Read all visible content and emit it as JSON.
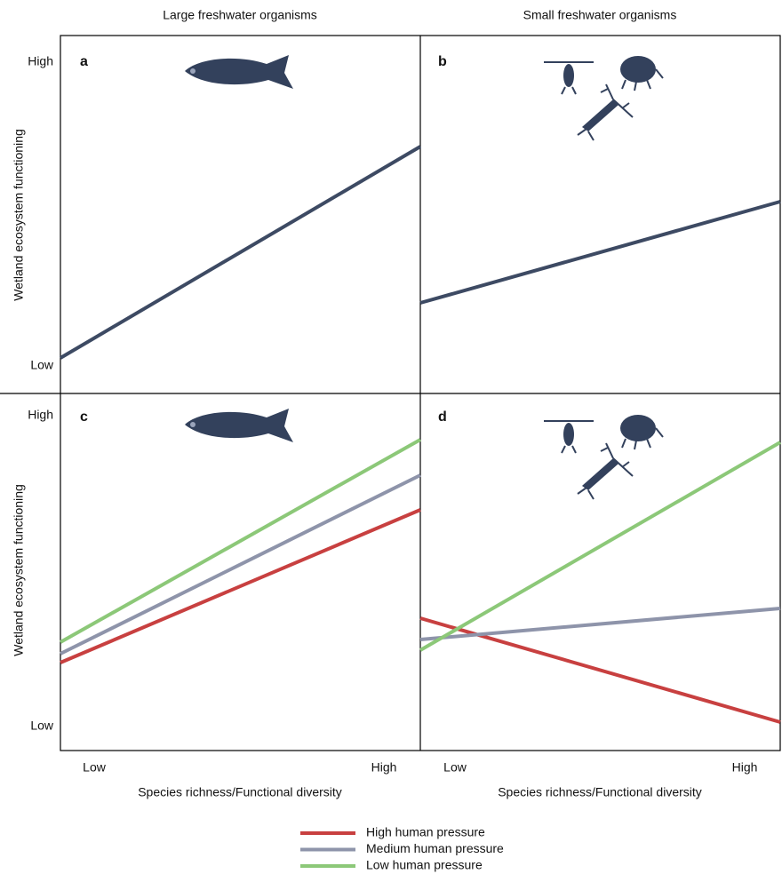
{
  "columns": [
    {
      "title": "Large freshwater organisms",
      "x_title": "Species richness/Functional diversity"
    },
    {
      "title": "Small freshwater organisms",
      "x_title": "Species richness/Functional diversity"
    }
  ],
  "rows": [
    {
      "y_title": "Wetland ecosystem functioning"
    },
    {
      "y_title": "Wetland ecosystem functioning"
    }
  ],
  "panels": [
    {
      "label": "a",
      "y_high": "High",
      "y_low": "Low"
    },
    {
      "label": "b"
    },
    {
      "label": "c",
      "y_high": "High",
      "y_low": "Low",
      "x_low": "Low",
      "x_high": "High"
    },
    {
      "label": "d",
      "x_low": "Low",
      "x_high": "High"
    }
  ],
  "legend": [
    {
      "label": "High human pressure",
      "color": "#c84040"
    },
    {
      "label": "Medium human pressure",
      "color": "#8e94aa"
    },
    {
      "label": "Low human pressure",
      "color": "#8cc878"
    }
  ]
}
